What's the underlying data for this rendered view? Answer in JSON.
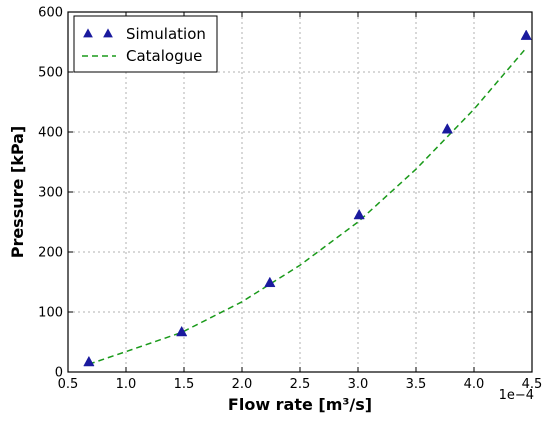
{
  "chart_data": {
    "type": "line",
    "xlabel": "Flow rate [m³/s]",
    "ylabel": "Pressure [kPa]",
    "x_offset_label": "1e−4",
    "xlim": [
      0.5,
      4.5
    ],
    "ylim": [
      0,
      600
    ],
    "x_ticks": [
      "0.5",
      "1.0",
      "1.5",
      "2.0",
      "2.5",
      "3.0",
      "3.5",
      "4.0",
      "4.5"
    ],
    "y_ticks": [
      "0",
      "100",
      "200",
      "300",
      "400",
      "500",
      "600"
    ],
    "grid": true,
    "legend_position": "top-left",
    "series": [
      {
        "name": "Simulation",
        "style": "triangle-markers",
        "color": "#1a1a9e",
        "x": [
          0.68,
          1.48,
          2.24,
          3.01,
          3.77,
          4.45
        ],
        "y": [
          16,
          66,
          148,
          261,
          404,
          560
        ]
      },
      {
        "name": "Catalogue",
        "style": "dashed-line",
        "color": "#1a9a1a",
        "x": [
          0.68,
          1.0,
          1.48,
          2.0,
          2.5,
          3.0,
          3.5,
          4.0,
          4.45
        ],
        "y": [
          13,
          34,
          66,
          117,
          178,
          250,
          338,
          438,
          540
        ]
      }
    ]
  }
}
